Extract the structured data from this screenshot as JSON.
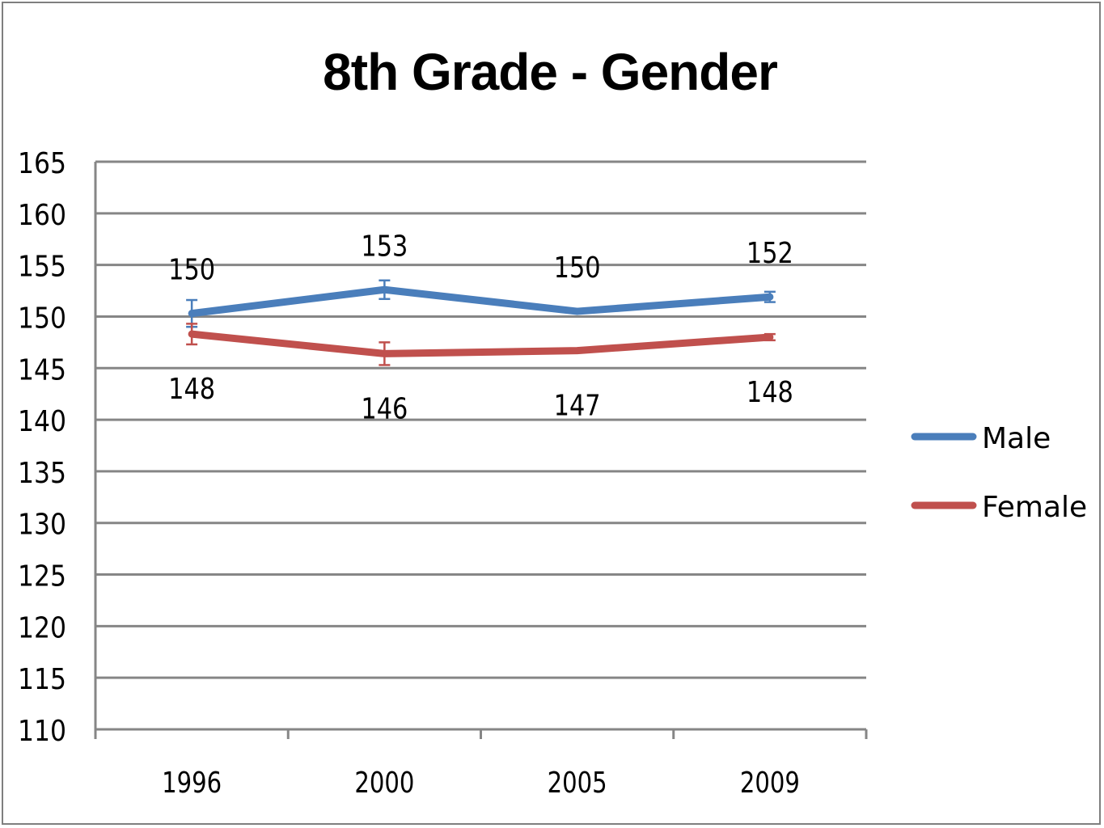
{
  "chart_data": {
    "type": "line",
    "title": "8th Grade - Gender",
    "xlabel": "",
    "ylabel": "",
    "categories": [
      "1996",
      "2000",
      "2005",
      "2009"
    ],
    "ylim": [
      110,
      165
    ],
    "yticks": [
      110,
      115,
      120,
      125,
      130,
      135,
      140,
      145,
      150,
      155,
      160,
      165
    ],
    "grid": true,
    "legend": "right",
    "series": [
      {
        "name": "Male",
        "color": "#4a7ebb",
        "values": [
          150.3,
          152.6,
          150.5,
          151.9
        ],
        "error": [
          1.3,
          0.9,
          null,
          0.5
        ],
        "labels": [
          "150",
          "153",
          "150",
          "152"
        ]
      },
      {
        "name": "Female",
        "color": "#c0504d",
        "values": [
          148.3,
          146.4,
          146.7,
          148.0
        ],
        "error": [
          1.0,
          1.1,
          null,
          0.3
        ],
        "labels": [
          "148",
          "146",
          "147",
          "148"
        ]
      }
    ]
  }
}
